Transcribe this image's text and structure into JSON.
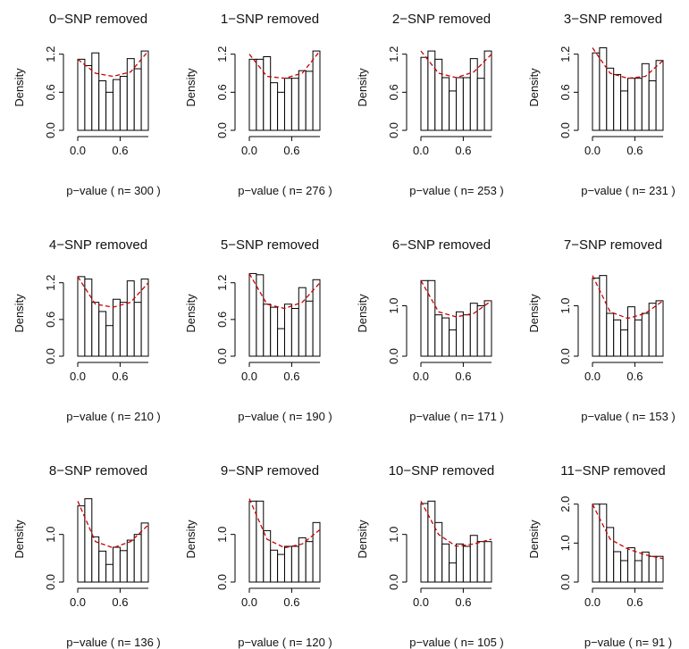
{
  "chart_data": [
    {
      "type": "histogram",
      "title": "0−SNP removed",
      "xlabel": "p−value ( n= 300 )",
      "ylabel": "Density",
      "bins": [
        0,
        0.1,
        0.2,
        0.3,
        0.4,
        0.5,
        0.6,
        0.7,
        0.8,
        0.9,
        1
      ],
      "values": [
        1.12,
        1.02,
        1.22,
        0.78,
        0.6,
        0.8,
        0.85,
        1.13,
        0.97,
        1.25
      ],
      "color": "#ffffff",
      "fit": {
        "x": [
          0,
          0.25,
          0.5,
          0.75,
          1
        ],
        "values": [
          1.12,
          0.9,
          0.85,
          0.92,
          1.25
        ],
        "color": "#cc0000"
      },
      "xlim": [
        0,
        1
      ],
      "ylim": [
        0,
        1.35
      ],
      "xticks": [
        {
          "value": 0,
          "label": "0.0"
        },
        {
          "value": 0.6,
          "label": "0.6"
        }
      ],
      "yticks": [
        {
          "value": 0,
          "label": "0.0"
        },
        {
          "value": 0.6,
          "label": "0.6"
        },
        {
          "value": 1.2,
          "label": "1.2"
        }
      ]
    },
    {
      "type": "histogram",
      "title": "1−SNP removed",
      "xlabel": "p−value ( n= 276 )",
      "ylabel": "Density",
      "bins": [
        0,
        0.1,
        0.2,
        0.3,
        0.4,
        0.5,
        0.6,
        0.7,
        0.8,
        0.9,
        1
      ],
      "values": [
        1.12,
        1.12,
        1.16,
        0.75,
        0.6,
        0.82,
        0.82,
        0.94,
        0.93,
        1.25
      ],
      "color": "#ffffff",
      "fit": {
        "x": [
          0,
          0.25,
          0.5,
          0.75,
          1
        ],
        "values": [
          1.2,
          0.85,
          0.82,
          0.9,
          1.25
        ],
        "color": "#cc0000"
      },
      "xlim": [
        0,
        1
      ],
      "ylim": [
        0,
        1.35
      ],
      "xticks": [
        {
          "value": 0,
          "label": "0.0"
        },
        {
          "value": 0.6,
          "label": "0.6"
        }
      ],
      "yticks": [
        {
          "value": 0,
          "label": "0.0"
        },
        {
          "value": 0.6,
          "label": "0.6"
        },
        {
          "value": 1.2,
          "label": "1.2"
        }
      ]
    },
    {
      "type": "histogram",
      "title": "2−SNP removed",
      "xlabel": "p−value ( n= 253 )",
      "ylabel": "Density",
      "bins": [
        0,
        0.1,
        0.2,
        0.3,
        0.4,
        0.5,
        0.6,
        0.7,
        0.8,
        0.9,
        1
      ],
      "values": [
        1.15,
        1.25,
        1.12,
        0.83,
        0.62,
        0.83,
        0.83,
        1.13,
        0.82,
        1.25
      ],
      "color": "#ffffff",
      "fit": {
        "x": [
          0,
          0.25,
          0.5,
          0.75,
          1
        ],
        "values": [
          1.25,
          0.9,
          0.83,
          0.92,
          1.2
        ],
        "color": "#cc0000"
      },
      "xlim": [
        0,
        1
      ],
      "ylim": [
        0,
        1.35
      ],
      "xticks": [
        {
          "value": 0,
          "label": "0.0"
        },
        {
          "value": 0.6,
          "label": "0.6"
        }
      ],
      "yticks": [
        {
          "value": 0,
          "label": "0.0"
        },
        {
          "value": 0.6,
          "label": "0.6"
        },
        {
          "value": 1.2,
          "label": "1.2"
        }
      ]
    },
    {
      "type": "histogram",
      "title": "3−SNP removed",
      "xlabel": "p−value ( n= 231 )",
      "ylabel": "Density",
      "bins": [
        0,
        0.1,
        0.2,
        0.3,
        0.4,
        0.5,
        0.6,
        0.7,
        0.8,
        0.9,
        1
      ],
      "values": [
        1.22,
        1.3,
        0.98,
        0.88,
        0.62,
        0.82,
        0.82,
        1.05,
        0.78,
        1.1
      ],
      "color": "#ffffff",
      "fit": {
        "x": [
          0,
          0.25,
          0.5,
          0.75,
          1
        ],
        "values": [
          1.3,
          0.9,
          0.82,
          0.85,
          1.1
        ],
        "color": "#cc0000"
      },
      "xlim": [
        0,
        1
      ],
      "ylim": [
        0,
        1.35
      ],
      "xticks": [
        {
          "value": 0,
          "label": "0.0"
        },
        {
          "value": 0.6,
          "label": "0.6"
        }
      ],
      "yticks": [
        {
          "value": 0,
          "label": "0.0"
        },
        {
          "value": 0.6,
          "label": "0.6"
        },
        {
          "value": 1.2,
          "label": "1.2"
        }
      ]
    },
    {
      "type": "histogram",
      "title": "4−SNP removed",
      "xlabel": "p−value ( n= 210 )",
      "ylabel": "Density",
      "bins": [
        0,
        0.1,
        0.2,
        0.3,
        0.4,
        0.5,
        0.6,
        0.7,
        0.8,
        0.9,
        1
      ],
      "values": [
        1.3,
        1.26,
        0.88,
        0.73,
        0.5,
        0.93,
        0.88,
        1.23,
        0.88,
        1.26
      ],
      "color": "#ffffff",
      "fit": {
        "x": [
          0,
          0.25,
          0.5,
          0.75,
          1
        ],
        "values": [
          1.3,
          0.85,
          0.8,
          0.88,
          1.2
        ],
        "color": "#cc0000"
      },
      "xlim": [
        0,
        1
      ],
      "ylim": [
        0,
        1.4
      ],
      "xticks": [
        {
          "value": 0,
          "label": "0.0"
        },
        {
          "value": 0.6,
          "label": "0.6"
        }
      ],
      "yticks": [
        {
          "value": 0,
          "label": "0.0"
        },
        {
          "value": 0.6,
          "label": "0.6"
        },
        {
          "value": 1.2,
          "label": "1.2"
        }
      ]
    },
    {
      "type": "histogram",
      "title": "5−SNP removed",
      "xlabel": "p−value ( n= 190 )",
      "ylabel": "Density",
      "bins": [
        0,
        0.1,
        0.2,
        0.3,
        0.4,
        0.5,
        0.6,
        0.7,
        0.8,
        0.9,
        1
      ],
      "values": [
        1.35,
        1.33,
        0.85,
        0.8,
        0.45,
        0.85,
        0.78,
        1.12,
        0.9,
        1.25
      ],
      "color": "#ffffff",
      "fit": {
        "x": [
          0,
          0.25,
          0.5,
          0.75,
          1
        ],
        "values": [
          1.35,
          0.85,
          0.78,
          0.88,
          1.2
        ],
        "color": "#cc0000"
      },
      "xlim": [
        0,
        1
      ],
      "ylim": [
        0,
        1.4
      ],
      "xticks": [
        {
          "value": 0,
          "label": "0.0"
        },
        {
          "value": 0.6,
          "label": "0.6"
        }
      ],
      "yticks": [
        {
          "value": 0,
          "label": "0.0"
        },
        {
          "value": 0.6,
          "label": "0.6"
        },
        {
          "value": 1.2,
          "label": "1.2"
        }
      ]
    },
    {
      "type": "histogram",
      "title": "6−SNP removed",
      "xlabel": "p−value ( n= 171 )",
      "ylabel": "Density",
      "bins": [
        0,
        0.1,
        0.2,
        0.3,
        0.4,
        0.5,
        0.6,
        0.7,
        0.8,
        0.9,
        1
      ],
      "values": [
        1.5,
        1.5,
        0.82,
        0.76,
        0.52,
        0.88,
        0.82,
        1.05,
        1.0,
        1.1
      ],
      "color": "#ffffff",
      "fit": {
        "x": [
          0,
          0.25,
          0.5,
          0.75,
          1
        ],
        "values": [
          1.5,
          0.88,
          0.78,
          0.85,
          1.1
        ],
        "color": "#cc0000"
      },
      "xlim": [
        0,
        1
      ],
      "ylim": [
        0,
        1.7
      ],
      "xticks": [
        {
          "value": 0,
          "label": "0.0"
        },
        {
          "value": 0.6,
          "label": "0.6"
        }
      ],
      "yticks": [
        {
          "value": 0,
          "label": "0.0"
        },
        {
          "value": 1,
          "label": "1.0"
        }
      ]
    },
    {
      "type": "histogram",
      "title": "7−SNP removed",
      "xlabel": "p−value ( n= 153 )",
      "ylabel": "Density",
      "bins": [
        0,
        0.1,
        0.2,
        0.3,
        0.4,
        0.5,
        0.6,
        0.7,
        0.8,
        0.9,
        1
      ],
      "values": [
        1.55,
        1.6,
        0.85,
        0.72,
        0.52,
        0.98,
        0.72,
        0.85,
        1.05,
        1.1
      ],
      "color": "#ffffff",
      "fit": {
        "x": [
          0,
          0.25,
          0.5,
          0.75,
          1
        ],
        "values": [
          1.6,
          0.88,
          0.75,
          0.85,
          1.1
        ],
        "color": "#cc0000"
      },
      "xlim": [
        0,
        1
      ],
      "ylim": [
        0,
        1.7
      ],
      "xticks": [
        {
          "value": 0,
          "label": "0.0"
        },
        {
          "value": 0.6,
          "label": "0.6"
        }
      ],
      "yticks": [
        {
          "value": 0,
          "label": "0.0"
        },
        {
          "value": 1,
          "label": "1.0"
        }
      ]
    },
    {
      "type": "histogram",
      "title": "8−SNP removed",
      "xlabel": "p−value ( n= 136 )",
      "ylabel": "Density",
      "bins": [
        0,
        0.1,
        0.2,
        0.3,
        0.4,
        0.5,
        0.6,
        0.7,
        0.8,
        0.9,
        1
      ],
      "values": [
        1.6,
        1.75,
        0.95,
        0.65,
        0.37,
        0.73,
        0.66,
        0.88,
        1.0,
        1.24
      ],
      "color": "#ffffff",
      "fit": {
        "x": [
          0,
          0.25,
          0.5,
          0.75,
          1
        ],
        "values": [
          1.7,
          0.85,
          0.72,
          0.85,
          1.2
        ],
        "color": "#cc0000"
      },
      "xlim": [
        0,
        1
      ],
      "ylim": [
        0,
        1.8
      ],
      "xticks": [
        {
          "value": 0,
          "label": "0.0"
        },
        {
          "value": 0.6,
          "label": "0.6"
        }
      ],
      "yticks": [
        {
          "value": 0,
          "label": "0.0"
        },
        {
          "value": 1,
          "label": "1.0"
        }
      ]
    },
    {
      "type": "histogram",
      "title": "9−SNP removed",
      "xlabel": "p−value ( n= 120 )",
      "ylabel": "Density",
      "bins": [
        0,
        0.1,
        0.2,
        0.3,
        0.4,
        0.5,
        0.6,
        0.7,
        0.8,
        0.9,
        1
      ],
      "values": [
        1.7,
        1.7,
        1.08,
        0.67,
        0.58,
        0.75,
        0.75,
        0.93,
        0.85,
        1.25
      ],
      "color": "#ffffff",
      "fit": {
        "x": [
          0,
          0.25,
          0.5,
          0.75,
          1
        ],
        "values": [
          1.75,
          0.9,
          0.72,
          0.8,
          1.1
        ],
        "color": "#cc0000"
      },
      "xlim": [
        0,
        1
      ],
      "ylim": [
        0,
        1.8
      ],
      "xticks": [
        {
          "value": 0,
          "label": "0.0"
        },
        {
          "value": 0.6,
          "label": "0.6"
        }
      ],
      "yticks": [
        {
          "value": 0,
          "label": "0.0"
        },
        {
          "value": 1,
          "label": "1.0"
        }
      ]
    },
    {
      "type": "histogram",
      "title": "10−SNP removed",
      "xlabel": "p−value ( n= 105 )",
      "ylabel": "Density",
      "bins": [
        0,
        0.1,
        0.2,
        0.3,
        0.4,
        0.5,
        0.6,
        0.7,
        0.8,
        0.9,
        1
      ],
      "values": [
        1.65,
        1.7,
        1.25,
        0.8,
        0.4,
        0.8,
        0.75,
        0.98,
        0.85,
        0.85
      ],
      "color": "#ffffff",
      "fit": {
        "x": [
          0,
          0.25,
          0.5,
          0.75,
          1
        ],
        "values": [
          1.7,
          1.0,
          0.75,
          0.8,
          0.9
        ],
        "color": "#cc0000"
      },
      "xlim": [
        0,
        1
      ],
      "ylim": [
        0,
        1.8
      ],
      "xticks": [
        {
          "value": 0,
          "label": "0.0"
        },
        {
          "value": 0.6,
          "label": "0.6"
        }
      ],
      "yticks": [
        {
          "value": 0,
          "label": "0.0"
        },
        {
          "value": 1,
          "label": "1.0"
        }
      ]
    },
    {
      "type": "histogram",
      "title": "11−SNP removed",
      "xlabel": "p−value ( n= 91 )",
      "ylabel": "Density",
      "bins": [
        0,
        0.1,
        0.2,
        0.3,
        0.4,
        0.5,
        0.6,
        0.7,
        0.8,
        0.9,
        1
      ],
      "values": [
        2.0,
        2.0,
        1.4,
        0.78,
        0.55,
        0.88,
        0.55,
        0.77,
        0.66,
        0.66
      ],
      "color": "#ffffff",
      "fit": {
        "x": [
          0,
          0.25,
          0.5,
          0.75,
          1
        ],
        "values": [
          2.0,
          1.1,
          0.85,
          0.7,
          0.6
        ],
        "color": "#cc0000"
      },
      "xlim": [
        0,
        1
      ],
      "ylim": [
        0,
        2.2
      ],
      "xticks": [
        {
          "value": 0,
          "label": "0.0"
        },
        {
          "value": 0.6,
          "label": "0.6"
        }
      ],
      "yticks": [
        {
          "value": 0,
          "label": "0.0"
        },
        {
          "value": 1,
          "label": "1.0"
        },
        {
          "value": 2,
          "label": "2.0"
        }
      ]
    }
  ]
}
